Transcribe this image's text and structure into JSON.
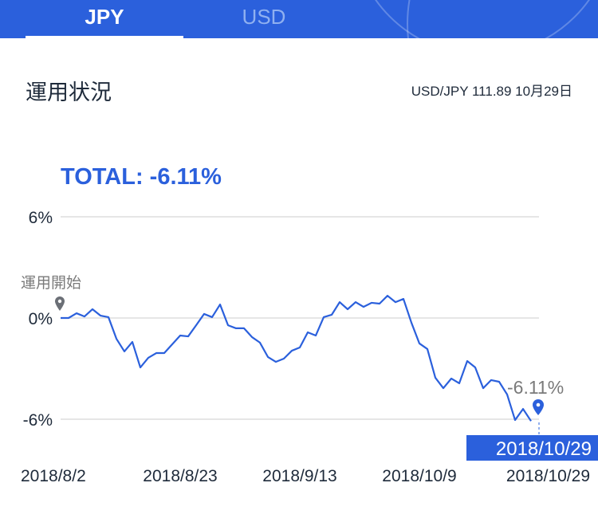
{
  "tabs": [
    {
      "label": "JPY",
      "active": true
    },
    {
      "label": "USD",
      "active": false
    }
  ],
  "header": {
    "title": "運用状況",
    "rate": "USD/JPY 111.89 10月29日"
  },
  "total_label": "TOTAL: -6.11%",
  "colors": {
    "accent": "#2b60dc",
    "line": "#2b60dc",
    "grid": "#dddddd",
    "muted": "#7a7a7a"
  },
  "chart_data": {
    "type": "line",
    "ylim": [
      -6,
      6
    ],
    "yticks": [
      "6%",
      "0%",
      "-6%"
    ],
    "ytick_values": [
      6,
      0,
      -6
    ],
    "xtick_labels": [
      "2018/8/2",
      "2018/8/23",
      "2018/9/13",
      "2018/10/9",
      "2018/10/29"
    ],
    "xtick_indices": [
      0,
      15,
      30,
      45,
      60
    ],
    "start_label": "運用開始",
    "end_value_label": "-6.11%",
    "end_date_label": "2018/10/29",
    "values": [
      0,
      0,
      0.28,
      0.09,
      0.52,
      0.14,
      0.05,
      -1.23,
      -1.98,
      -1.42,
      -2.93,
      -2.36,
      -2.08,
      -2.08,
      -1.56,
      -1.04,
      -1.09,
      -0.43,
      0.24,
      0.05,
      0.8,
      -0.43,
      -0.61,
      -0.61,
      -1.13,
      -1.46,
      -2.31,
      -2.6,
      -2.41,
      -1.94,
      -1.75,
      -0.85,
      -1.04,
      0.05,
      0.19,
      0.94,
      0.52,
      0.94,
      0.66,
      0.9,
      0.85,
      1.32,
      0.94,
      1.13,
      -0.28,
      -1.51,
      -1.84,
      -3.54,
      -4.16,
      -3.59,
      -3.87,
      -2.55,
      -2.93,
      -4.16,
      -3.68,
      -3.78,
      -4.53,
      -6.05,
      -5.39,
      -6.11
    ]
  }
}
